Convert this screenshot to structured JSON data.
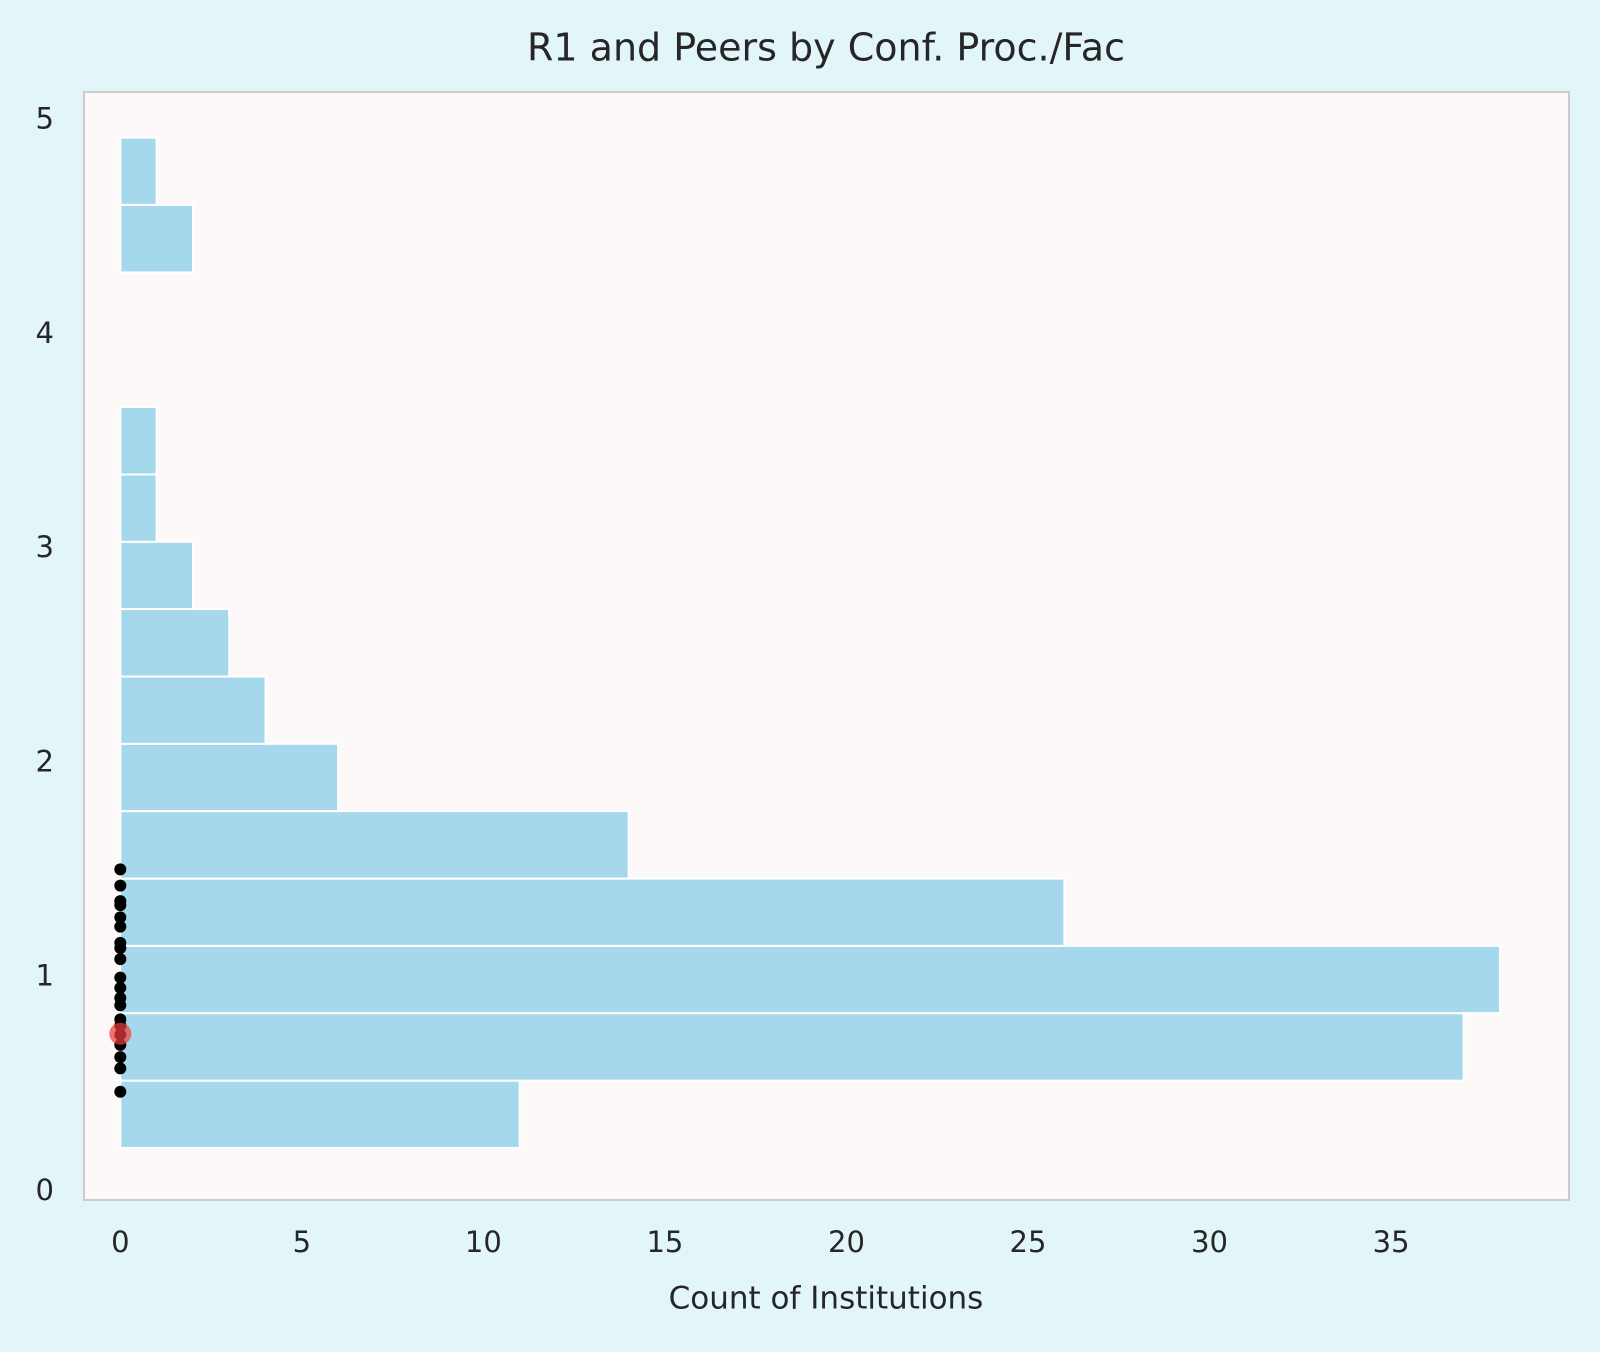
{
  "chart_data": {
    "type": "histogram",
    "orientation": "horizontal",
    "title": "R1 and Peers by Conf. Proc./Fac",
    "x_label": "Count of Institutions",
    "bins": [
      0.205,
      0.519,
      0.834,
      1.148,
      1.462,
      1.777,
      2.091,
      2.405,
      2.72,
      3.034,
      3.348,
      3.663,
      3.977,
      4.291,
      4.606,
      4.92
    ],
    "counts": [
      11,
      37,
      38,
      26,
      14,
      6,
      4,
      3,
      2,
      1,
      1,
      0,
      0,
      2,
      1
    ],
    "color": "#a5d8ec",
    "points": {
      "color": "#000000",
      "x": [
        0,
        0,
        0,
        0,
        0,
        0,
        0,
        0,
        0,
        0,
        0,
        0,
        0,
        0,
        0,
        0,
        0,
        0,
        0,
        0
      ],
      "y": [
        1.505,
        1.429,
        1.357,
        1.338,
        1.281,
        1.238,
        1.162,
        1.138,
        1.086,
        1.0,
        0.952,
        0.905,
        0.871,
        0.805,
        0.776,
        0.733,
        0.686,
        0.629,
        0.576,
        0.467
      ]
    },
    "highlight": {
      "x": 0,
      "y": 0.738,
      "color": "#f03c3c"
    },
    "xlim": [
      -1.0,
      39.9
    ],
    "ylim": [
      -0.038,
      5.133
    ],
    "xticks": [
      0,
      5,
      10,
      15,
      20,
      25,
      30,
      35
    ],
    "yticks": [
      0,
      1,
      2,
      3,
      4,
      5
    ],
    "grid": false
  }
}
